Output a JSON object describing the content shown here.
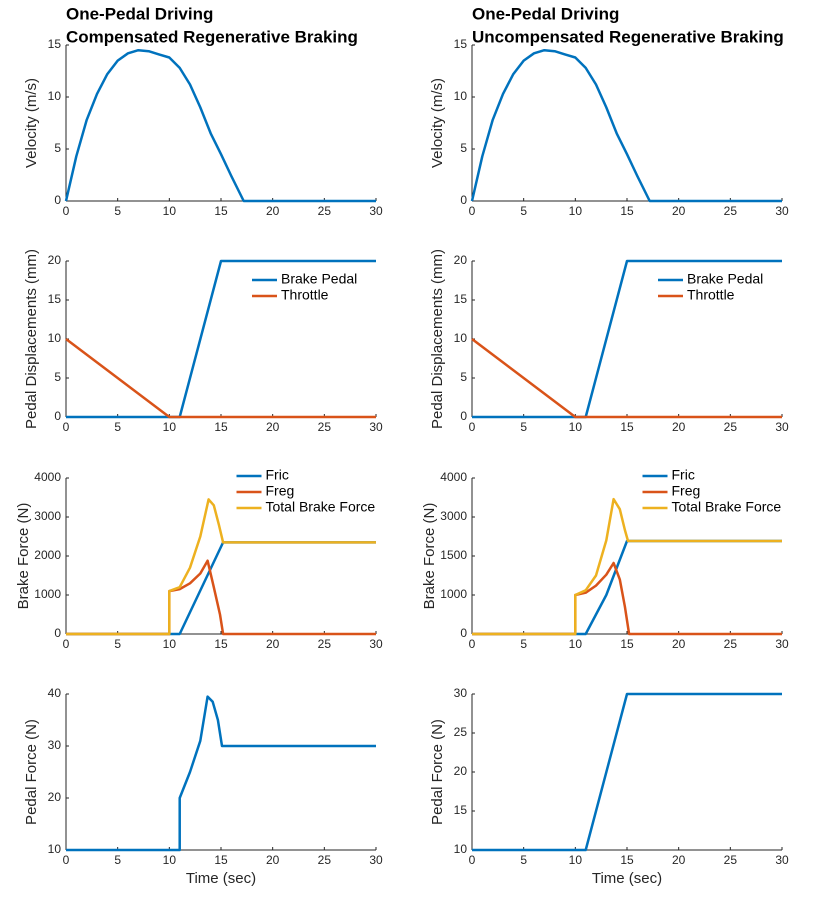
{
  "chart_data": [
    {
      "type": "line",
      "title": [
        "One-Pedal Driving",
        "Compensated Regenerative Braking"
      ],
      "ylabel": "Velocity (m/s)",
      "xlim": [
        0,
        30
      ],
      "xticks": [
        0,
        5,
        10,
        15,
        20,
        25,
        30
      ],
      "ylim": [
        0,
        15
      ],
      "yticks": [
        0,
        5,
        10,
        15
      ],
      "series": [
        {
          "color": "#0072bd",
          "x": [
            0,
            1,
            2,
            3,
            4,
            5,
            6,
            7,
            8,
            9,
            10,
            11,
            12,
            13,
            14,
            15,
            16,
            17.2,
            30
          ],
          "values": [
            0,
            4.3,
            7.8,
            10.3,
            12.2,
            13.5,
            14.2,
            14.5,
            14.4,
            14.1,
            13.8,
            12.8,
            11.2,
            9,
            6.5,
            4.5,
            2.4,
            0,
            0
          ]
        }
      ]
    },
    {
      "type": "line",
      "title": [
        "One-Pedal Driving",
        "Uncompensated Regenerative Braking"
      ],
      "ylabel": "Velocity (m/s)",
      "xlim": [
        0,
        30
      ],
      "xticks": [
        0,
        5,
        10,
        15,
        20,
        25,
        30
      ],
      "ylim": [
        0,
        15
      ],
      "yticks": [
        0,
        5,
        10,
        15
      ],
      "series": [
        {
          "color": "#0072bd",
          "x": [
            0,
            1,
            2,
            3,
            4,
            5,
            6,
            7,
            8,
            9,
            10,
            11,
            12,
            13,
            14,
            15,
            16,
            17.2,
            30
          ],
          "values": [
            0,
            4.3,
            7.8,
            10.3,
            12.2,
            13.5,
            14.2,
            14.5,
            14.4,
            14.1,
            13.8,
            12.8,
            11.2,
            9,
            6.5,
            4.5,
            2.4,
            0,
            0
          ]
        }
      ]
    },
    {
      "type": "line",
      "ylabel": "Pedal Displacements (mm)",
      "legend": "upper right",
      "xlim": [
        0,
        30
      ],
      "xticks": [
        0,
        5,
        10,
        15,
        20,
        25,
        30
      ],
      "ylim": [
        0,
        20
      ],
      "yticks": [
        0,
        5,
        10,
        15,
        20
      ],
      "series": [
        {
          "name": "Brake Pedal",
          "color": "#0072bd",
          "x": [
            0,
            11,
            15,
            30
          ],
          "values": [
            0,
            0,
            20,
            20
          ]
        },
        {
          "name": "Throttle",
          "color": "#d95319",
          "x": [
            0,
            10,
            30
          ],
          "values": [
            10,
            0,
            0
          ]
        }
      ]
    },
    {
      "type": "line",
      "ylabel": "Pedal Displacements (mm)",
      "legend": "upper right",
      "xlim": [
        0,
        30
      ],
      "xticks": [
        0,
        5,
        10,
        15,
        20,
        25,
        30
      ],
      "ylim": [
        0,
        20
      ],
      "yticks": [
        0,
        5,
        10,
        15,
        20
      ],
      "series": [
        {
          "name": "Brake Pedal",
          "color": "#0072bd",
          "x": [
            0,
            11,
            15,
            30
          ],
          "values": [
            0,
            0,
            20,
            20
          ]
        },
        {
          "name": "Throttle",
          "color": "#d95319",
          "x": [
            0,
            10,
            30
          ],
          "values": [
            10,
            0,
            0
          ]
        }
      ]
    },
    {
      "type": "line",
      "ylabel": "Brake Force (N)",
      "legend": "upper right",
      "xlim": [
        0,
        30
      ],
      "xticks": [
        0,
        5,
        10,
        15,
        20,
        25,
        30
      ],
      "ylim": [
        0,
        4000
      ],
      "yticks": [
        0,
        1000,
        2000,
        3000,
        4000
      ],
      "series": [
        {
          "name": "Fric",
          "color": "#0072bd",
          "x": [
            0,
            11,
            15.2,
            30
          ],
          "values": [
            0,
            0,
            2350,
            2350
          ]
        },
        {
          "name": "Freg",
          "color": "#d95319",
          "x": [
            0,
            10,
            10,
            11,
            12,
            13,
            13.7,
            14.3,
            14.9,
            15.2,
            30
          ],
          "values": [
            0,
            0,
            1100,
            1150,
            1300,
            1550,
            1880,
            1200,
            500,
            0,
            0
          ]
        },
        {
          "name": "Total Brake Force",
          "color": "#edb120",
          "x": [
            0,
            10,
            10,
            11,
            12,
            13,
            13.8,
            14.3,
            14.8,
            15.2,
            30
          ],
          "values": [
            0,
            0,
            1100,
            1200,
            1700,
            2500,
            3450,
            3300,
            2800,
            2350,
            2350
          ]
        }
      ]
    },
    {
      "type": "line",
      "ylabel": "Brake Force (N)",
      "legend": "upper right",
      "xlim": [
        0,
        30
      ],
      "xticks": [
        0,
        5,
        10,
        15,
        20,
        25,
        30
      ],
      "ylim": [
        0,
        4000
      ],
      "yticks": [
        0,
        1000,
        1500,
        3000,
        4000
      ],
      "series": [
        {
          "name": "Fric",
          "color": "#0072bd",
          "x": [
            0,
            11,
            13,
            15,
            30
          ],
          "values": [
            0,
            0,
            1000,
            2077,
            2077
          ]
        },
        {
          "name": "Freg",
          "color": "#d95319",
          "x": [
            0,
            10,
            10,
            11,
            12,
            13,
            13.7,
            14.3,
            14.8,
            15.2,
            30
          ],
          "values": [
            0,
            0,
            1000,
            1030,
            1120,
            1260,
            1410,
            1200,
            700,
            0,
            0
          ]
        },
        {
          "name": "Total Brake Force",
          "color": "#edb120",
          "x": [
            0,
            10,
            10,
            11,
            12,
            13,
            13.7,
            14.3,
            14.8,
            15.1,
            30
          ],
          "values": [
            0,
            0,
            1000,
            1060,
            1250,
            2100,
            3460,
            3200,
            2500,
            2077,
            2077
          ]
        }
      ]
    },
    {
      "type": "line",
      "ylabel": "Pedal Force (N)",
      "xlabel": "Time (sec)",
      "xlim": [
        0,
        30
      ],
      "xticks": [
        0,
        5,
        10,
        15,
        20,
        25,
        30
      ],
      "ylim": [
        10,
        40
      ],
      "yticks": [
        10,
        20,
        30,
        40
      ],
      "series": [
        {
          "color": "#0072bd",
          "x": [
            0,
            11,
            11,
            12,
            13,
            13.7,
            14.2,
            14.7,
            15.1,
            30
          ],
          "values": [
            10,
            10,
            20,
            25,
            31,
            39.5,
            38.5,
            35,
            30,
            30
          ]
        }
      ]
    },
    {
      "type": "line",
      "ylabel": "Pedal Force (N)",
      "xlabel": "Time (sec)",
      "xlim": [
        0,
        30
      ],
      "xticks": [
        0,
        5,
        10,
        15,
        20,
        25,
        30
      ],
      "ylim": [
        10,
        30
      ],
      "yticks": [
        10,
        15,
        20,
        25,
        30
      ],
      "series": [
        {
          "color": "#0072bd",
          "x": [
            0,
            11,
            15,
            30
          ],
          "values": [
            10,
            10,
            30,
            30
          ]
        }
      ]
    }
  ]
}
